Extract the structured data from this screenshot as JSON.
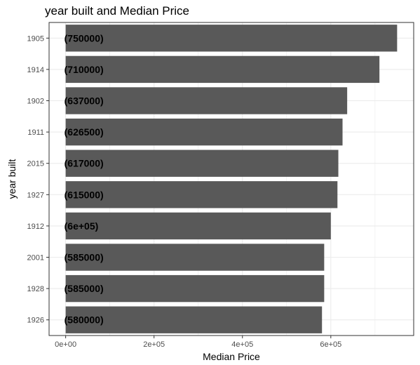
{
  "chart_data": {
    "type": "bar",
    "orientation": "horizontal",
    "title": "year built and Median Price",
    "xlabel": "Median Price",
    "ylabel": "year built",
    "categories": [
      "1905",
      "1914",
      "1902",
      "1911",
      "2015",
      "1927",
      "1912",
      "2001",
      "1928",
      "1926"
    ],
    "values": [
      750000,
      710000,
      637000,
      626500,
      617000,
      615000,
      600000,
      585000,
      585000,
      580000
    ],
    "data_labels": [
      "(750000)",
      "(710000)",
      "(637000)",
      "(626500)",
      "(617000)",
      "(615000)",
      "(6e+05)",
      "(585000)",
      "(585000)",
      "(580000)"
    ],
    "xticks": [
      0,
      200000,
      400000,
      600000
    ],
    "xtick_labels": [
      "0e+00",
      "2e+05",
      "4e+05",
      "6e+05"
    ],
    "xlim": [
      -37500,
      787500
    ],
    "grid": true,
    "bar_color": "#595959",
    "grid_color": "#ebebeb",
    "border_color": "#333333"
  }
}
